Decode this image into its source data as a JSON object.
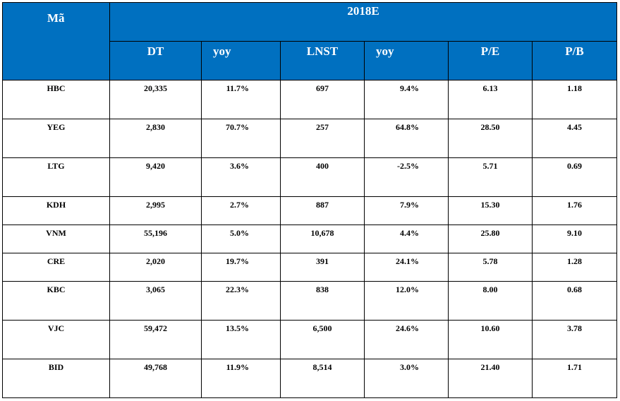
{
  "table": {
    "code_header": "Mã",
    "year_header": "2018E",
    "columns": [
      "DT",
      "yoy",
      "LNST",
      "yoy",
      "P/E",
      "P/B"
    ],
    "rows": [
      {
        "code": "HBC",
        "dt": "20,335",
        "dt_yoy": "11.7%",
        "lnst": "697",
        "lnst_yoy": "9.4%",
        "pe": "6.13",
        "pb": "1.18"
      },
      {
        "code": "YEG",
        "dt": "2,830",
        "dt_yoy": "70.7%",
        "lnst": "257",
        "lnst_yoy": "64.8%",
        "pe": "28.50",
        "pb": "4.45"
      },
      {
        "code": "LTG",
        "dt": "9,420",
        "dt_yoy": "3.6%",
        "lnst": "400",
        "lnst_yoy": "-2.5%",
        "pe": "5.71",
        "pb": "0.69"
      },
      {
        "code": "KDH",
        "dt": "2,995",
        "dt_yoy": "2.7%",
        "lnst": "887",
        "lnst_yoy": "7.9%",
        "pe": "15.30",
        "pb": "1.76"
      },
      {
        "code": "VNM",
        "dt": "55,196",
        "dt_yoy": "5.0%",
        "lnst": "10,678",
        "lnst_yoy": "4.4%",
        "pe": "25.80",
        "pb": "9.10"
      },
      {
        "code": "CRE",
        "dt": "2,020",
        "dt_yoy": "19.7%",
        "lnst": "391",
        "lnst_yoy": "24.1%",
        "pe": "5.78",
        "pb": "1.28"
      },
      {
        "code": "KBC",
        "dt": "3,065",
        "dt_yoy": "22.3%",
        "lnst": "838",
        "lnst_yoy": "12.0%",
        "pe": "8.00",
        "pb": "0.68"
      },
      {
        "code": "VJC",
        "dt": "59,472",
        "dt_yoy": "13.5%",
        "lnst": "6,500",
        "lnst_yoy": "24.6%",
        "pe": "10.60",
        "pb": "3.78"
      },
      {
        "code": "BID",
        "dt": "49,768",
        "dt_yoy": "11.9%",
        "lnst": "8,514",
        "lnst_yoy": "3.0%",
        "pe": "21.40",
        "pb": "1.71"
      }
    ]
  },
  "colors": {
    "header_bg": "#0070c0",
    "header_text": "#ffffff",
    "border": "#000000"
  }
}
